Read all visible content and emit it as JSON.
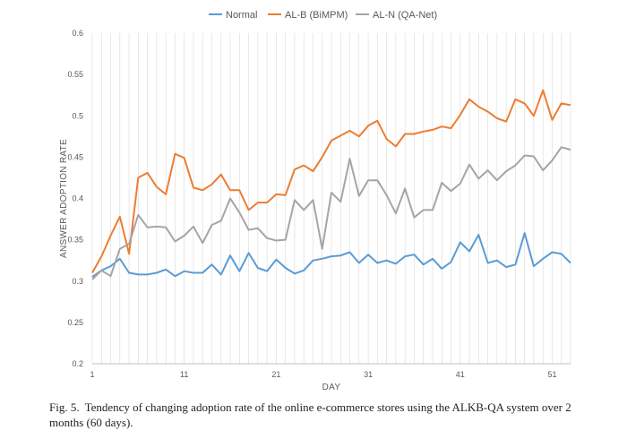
{
  "caption": {
    "label": "Fig. 5.",
    "text": "Tendency of changing adoption rate of the online e-commerce stores using the ALKB-QA system over 2 months (60 days)."
  },
  "chart_data": {
    "type": "line",
    "xlabel": "DAY",
    "ylabel": "ANSWER ADOPTION RATE",
    "xlim": [
      1,
      53
    ],
    "ylim": [
      0.2,
      0.6
    ],
    "x_ticks": [
      1,
      11,
      21,
      31,
      41,
      51
    ],
    "y_ticks": [
      0.2,
      0.25,
      0.3,
      0.35,
      0.4,
      0.45,
      0.5,
      0.55,
      0.6
    ],
    "y_tick_labels": [
      "0.2",
      "0.25",
      "0.3",
      "0.35",
      "0.4",
      "0.45",
      "0.5",
      "0.55",
      "0.6"
    ],
    "grid": "vertical",
    "legend_position": "top",
    "x": [
      1,
      2,
      3,
      4,
      5,
      6,
      7,
      8,
      9,
      10,
      11,
      12,
      13,
      14,
      15,
      16,
      17,
      18,
      19,
      20,
      21,
      22,
      23,
      24,
      25,
      26,
      27,
      28,
      29,
      30,
      31,
      32,
      33,
      34,
      35,
      36,
      37,
      38,
      39,
      40,
      41,
      42,
      43,
      44,
      45,
      46,
      47,
      48,
      49,
      50,
      51,
      52,
      53
    ],
    "series": [
      {
        "name": "Normal",
        "color": "#5b9bd5",
        "values": [
          0.305,
          0.313,
          0.318,
          0.327,
          0.31,
          0.308,
          0.308,
          0.31,
          0.314,
          0.306,
          0.312,
          0.31,
          0.31,
          0.32,
          0.308,
          0.331,
          0.312,
          0.334,
          0.316,
          0.312,
          0.326,
          0.316,
          0.309,
          0.313,
          0.325,
          0.327,
          0.33,
          0.331,
          0.335,
          0.322,
          0.332,
          0.322,
          0.325,
          0.321,
          0.33,
          0.332,
          0.32,
          0.327,
          0.315,
          0.323,
          0.347,
          0.336,
          0.356,
          0.322,
          0.325,
          0.317,
          0.32,
          0.358,
          0.318,
          0.327,
          0.335,
          0.333,
          0.322
        ]
      },
      {
        "name": "AL-B  (BiMPM)",
        "color": "#ed7d31",
        "values": [
          0.31,
          0.33,
          0.355,
          0.378,
          0.333,
          0.425,
          0.431,
          0.414,
          0.405,
          0.454,
          0.449,
          0.413,
          0.41,
          0.417,
          0.429,
          0.41,
          0.41,
          0.386,
          0.395,
          0.395,
          0.405,
          0.404,
          0.435,
          0.44,
          0.433,
          0.45,
          0.47,
          0.476,
          0.482,
          0.475,
          0.488,
          0.494,
          0.472,
          0.463,
          0.478,
          0.478,
          0.481,
          0.483,
          0.487,
          0.485,
          0.501,
          0.52,
          0.511,
          0.505,
          0.497,
          0.493,
          0.52,
          0.515,
          0.5,
          0.531,
          0.495,
          0.515,
          0.513
        ]
      },
      {
        "name": "AL-N (QA-Net)",
        "color": "#a5a5a5",
        "values": [
          0.302,
          0.313,
          0.306,
          0.339,
          0.345,
          0.38,
          0.365,
          0.366,
          0.365,
          0.348,
          0.355,
          0.366,
          0.346,
          0.368,
          0.373,
          0.4,
          0.383,
          0.362,
          0.364,
          0.352,
          0.349,
          0.35,
          0.398,
          0.386,
          0.398,
          0.339,
          0.407,
          0.396,
          0.448,
          0.403,
          0.422,
          0.422,
          0.404,
          0.382,
          0.412,
          0.377,
          0.386,
          0.386,
          0.419,
          0.409,
          0.418,
          0.441,
          0.424,
          0.434,
          0.422,
          0.433,
          0.44,
          0.452,
          0.451,
          0.434,
          0.446,
          0.462,
          0.459
        ]
      }
    ]
  }
}
